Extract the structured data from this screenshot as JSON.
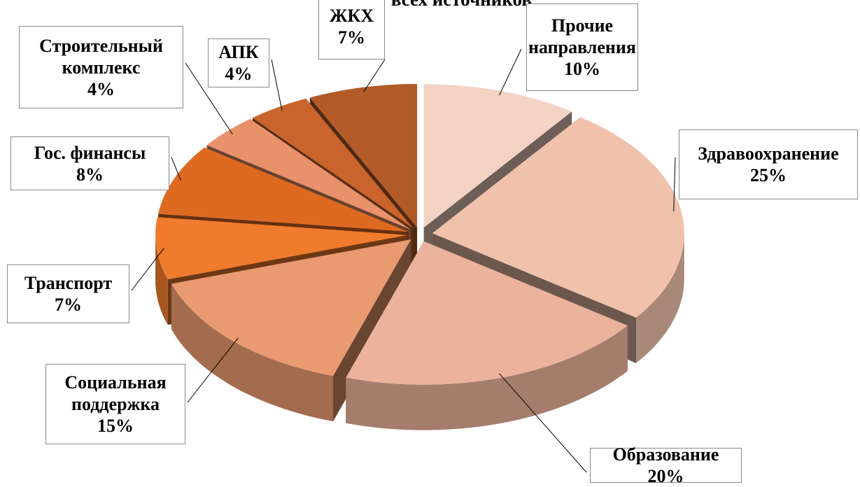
{
  "chart_data": {
    "type": "pie",
    "title": "за счет всех источников",
    "categories": [
      "Прочие направления",
      "Здравоохранение",
      "Образование",
      "Социальная поддержка",
      "Транспорт",
      "Гос. финансы",
      "Строительный комплекс",
      "АПК",
      "ЖКХ"
    ],
    "values": [
      10,
      25,
      20,
      15,
      7,
      8,
      4,
      4,
      7
    ],
    "value_labels": [
      "10%",
      "25%",
      "20%",
      "15%",
      "7%",
      "8%",
      "4%",
      "4%",
      "7%"
    ],
    "colors": [
      "#f3d3c4",
      "#f0c2ac",
      "#ebb39c",
      "#e99a70",
      "#ef7b2c",
      "#de6a22",
      "#e8916a",
      "#c9642c",
      "#b25a28"
    ]
  }
}
